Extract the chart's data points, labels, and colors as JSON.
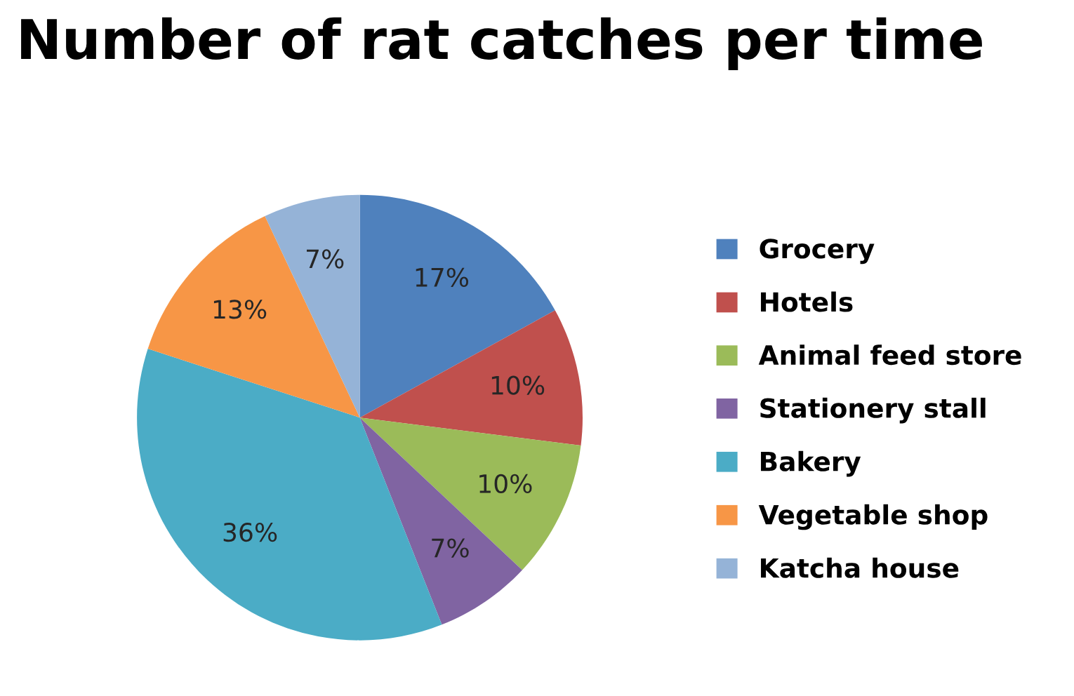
{
  "chart_data": {
    "type": "pie",
    "title": "Number of rat catches per time",
    "categories": [
      "Grocery",
      "Hotels",
      "Animal feed store",
      "Stationery stall",
      "Bakery",
      "Vegetable shop",
      "Katcha house"
    ],
    "values": [
      17,
      10,
      10,
      7,
      36,
      13,
      7
    ],
    "value_labels": [
      "17%",
      "10%",
      "10%",
      "7%",
      "36%",
      "13%",
      "7%"
    ],
    "colors": [
      "#4f81bd",
      "#c0504d",
      "#9bbb59",
      "#8064a2",
      "#4bacc6",
      "#f79646",
      "#95b3d7"
    ],
    "legend": "right"
  }
}
